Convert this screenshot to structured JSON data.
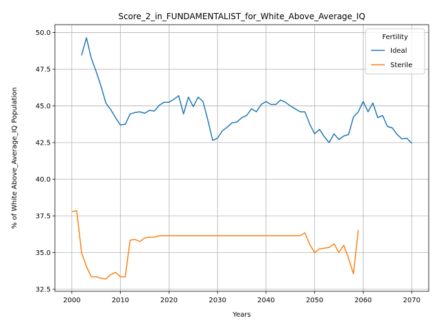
{
  "chart_data": {
    "type": "line",
    "title": "Score_2_in_FUNDAMENTALIST_for_White_Above_Average_IQ",
    "xlabel": "Years",
    "ylabel": "% of White Above_Average_IQ Population",
    "xlim": [
      1996.5,
      2073.5
    ],
    "ylim": [
      32.36,
      50.54
    ],
    "xticks": [
      2000,
      2010,
      2020,
      2030,
      2040,
      2050,
      2060,
      2070
    ],
    "yticks": [
      32.5,
      35.0,
      37.5,
      40.0,
      42.5,
      45.0,
      47.5,
      50.0
    ],
    "xtick_labels": [
      "2000",
      "2010",
      "2020",
      "2030",
      "2040",
      "2050",
      "2060",
      "2070"
    ],
    "ytick_labels": [
      "32.5",
      "35.0",
      "37.5",
      "40.0",
      "42.5",
      "45.0",
      "47.5",
      "50.0"
    ],
    "grid": true,
    "legend": {
      "title": "Fertility",
      "placement": "top-right"
    },
    "series": [
      {
        "name": "Ideal",
        "color": "#1f77b4",
        "points": [
          [
            2002,
            48.45
          ],
          [
            2003,
            49.65
          ],
          [
            2004,
            48.25
          ],
          [
            2005,
            47.35
          ],
          [
            2006,
            46.35
          ],
          [
            2007,
            45.2
          ],
          [
            2008,
            44.75
          ],
          [
            2009,
            44.2
          ],
          [
            2010,
            43.7
          ],
          [
            2011,
            43.75
          ],
          [
            2012,
            44.45
          ],
          [
            2013,
            44.55
          ],
          [
            2014,
            44.6
          ],
          [
            2015,
            44.5
          ],
          [
            2016,
            44.7
          ],
          [
            2017,
            44.65
          ],
          [
            2018,
            45.05
          ],
          [
            2019,
            45.25
          ],
          [
            2020,
            45.25
          ],
          [
            2021,
            45.45
          ],
          [
            2022,
            45.7
          ],
          [
            2023,
            44.45
          ],
          [
            2024,
            45.6
          ],
          [
            2025,
            44.95
          ],
          [
            2026,
            45.6
          ],
          [
            2027,
            45.3
          ],
          [
            2028,
            44.05
          ],
          [
            2029,
            42.65
          ],
          [
            2030,
            42.8
          ],
          [
            2031,
            43.3
          ],
          [
            2032,
            43.55
          ],
          [
            2033,
            43.85
          ],
          [
            2034,
            43.9
          ],
          [
            2035,
            44.2
          ],
          [
            2036,
            44.35
          ],
          [
            2037,
            44.8
          ],
          [
            2038,
            44.6
          ],
          [
            2039,
            45.1
          ],
          [
            2040,
            45.3
          ],
          [
            2041,
            45.1
          ],
          [
            2042,
            45.1
          ],
          [
            2043,
            45.4
          ],
          [
            2044,
            45.25
          ],
          [
            2045,
            45.0
          ],
          [
            2046,
            44.8
          ],
          [
            2047,
            44.6
          ],
          [
            2048,
            44.6
          ],
          [
            2049,
            43.75
          ],
          [
            2050,
            43.1
          ],
          [
            2051,
            43.4
          ],
          [
            2052,
            42.9
          ],
          [
            2053,
            42.5
          ],
          [
            2054,
            43.1
          ],
          [
            2055,
            42.7
          ],
          [
            2056,
            42.95
          ],
          [
            2057,
            43.05
          ],
          [
            2058,
            44.25
          ],
          [
            2059,
            44.6
          ],
          [
            2060,
            45.3
          ],
          [
            2061,
            44.6
          ],
          [
            2062,
            45.2
          ],
          [
            2063,
            44.2
          ],
          [
            2064,
            44.35
          ],
          [
            2065,
            43.6
          ],
          [
            2066,
            43.5
          ],
          [
            2067,
            43.05
          ],
          [
            2068,
            42.75
          ],
          [
            2069,
            42.8
          ],
          [
            2070,
            42.45
          ]
        ]
      },
      {
        "name": "Sterile",
        "color": "#ff7f0e",
        "points": [
          [
            2000,
            37.8
          ],
          [
            2001,
            37.85
          ],
          [
            2002,
            35.0
          ],
          [
            2003,
            34.05
          ],
          [
            2004,
            33.35
          ],
          [
            2005,
            33.35
          ],
          [
            2006,
            33.25
          ],
          [
            2007,
            33.2
          ],
          [
            2008,
            33.5
          ],
          [
            2009,
            33.65
          ],
          [
            2010,
            33.35
          ],
          [
            2011,
            33.35
          ],
          [
            2012,
            35.85
          ],
          [
            2013,
            35.9
          ],
          [
            2014,
            35.75
          ],
          [
            2015,
            36.0
          ],
          [
            2016,
            36.05
          ],
          [
            2017,
            36.05
          ],
          [
            2018,
            36.15
          ],
          [
            2019,
            36.15
          ],
          [
            2020,
            36.15
          ],
          [
            2022,
            36.15
          ],
          [
            2025,
            36.15
          ],
          [
            2030,
            36.15
          ],
          [
            2035,
            36.15
          ],
          [
            2040,
            36.15
          ],
          [
            2045,
            36.15
          ],
          [
            2047,
            36.15
          ],
          [
            2048,
            36.35
          ],
          [
            2049,
            35.55
          ],
          [
            2050,
            35.0
          ],
          [
            2051,
            35.25
          ],
          [
            2052,
            35.3
          ],
          [
            2053,
            35.35
          ],
          [
            2054,
            35.6
          ],
          [
            2055,
            35.0
          ],
          [
            2056,
            35.5
          ],
          [
            2057,
            34.6
          ],
          [
            2058,
            33.55
          ],
          [
            2059,
            36.55
          ]
        ]
      }
    ]
  }
}
